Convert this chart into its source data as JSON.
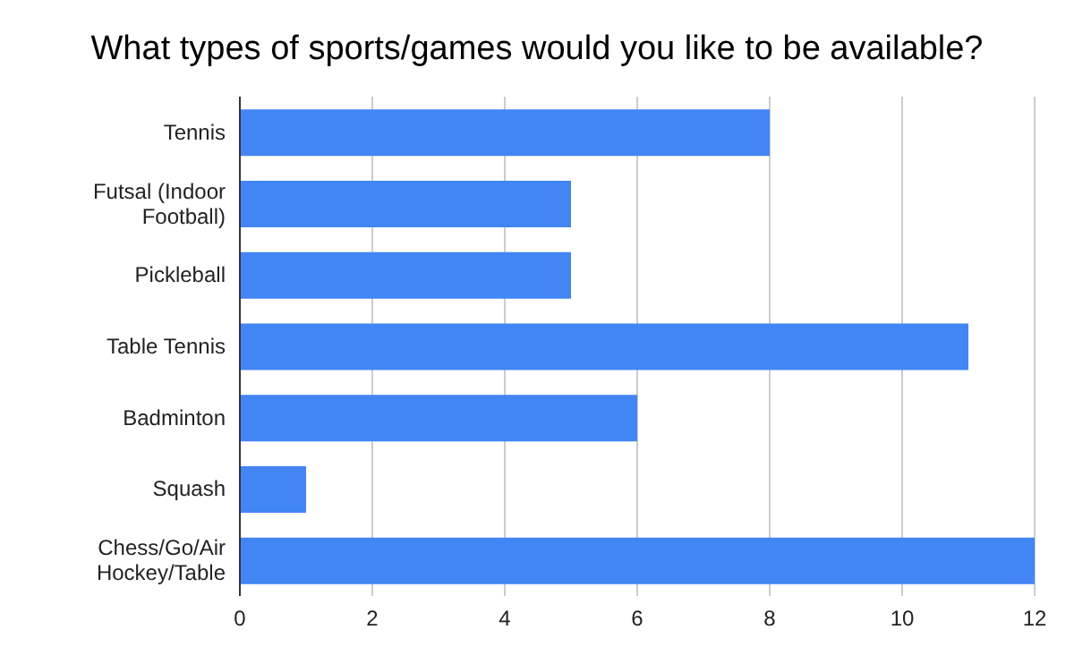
{
  "chart_data": {
    "type": "bar",
    "orientation": "horizontal",
    "title": "What types of sports/games would you like to be available?",
    "categories": [
      "Tennis",
      "Futsal (Indoor Football)",
      "Pickleball",
      "Table Tennis",
      "Badminton",
      "Squash",
      "Chess/Go/Air Hockey/Table"
    ],
    "values": [
      8,
      5,
      5,
      11,
      6,
      1,
      12
    ],
    "color": "#4285f4",
    "xlim": [
      0,
      12
    ],
    "xticks": [
      0,
      2,
      4,
      6,
      8,
      10,
      12
    ],
    "grid": "x"
  }
}
